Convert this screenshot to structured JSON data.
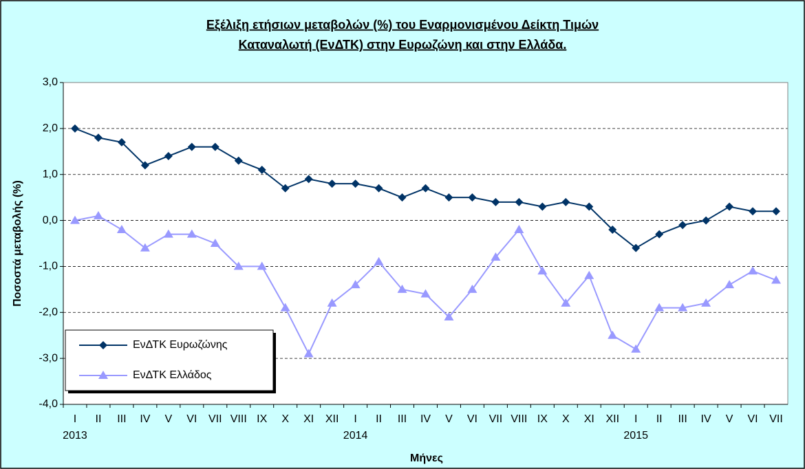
{
  "chart_data": {
    "type": "line",
    "title": [
      "Εξέλιξη ετήσιων μεταβολών (%) του Εναρμονισμένου Δείκτη Τιμών",
      "Καταναλωτή (ΕνΔΤΚ) στην Ευρωζώνη  και στην Ελλάδα."
    ],
    "x_label": "Μήνες",
    "y_label": "Ποσοστά μεταβολής (%)",
    "categories": [
      [
        "I",
        "2013"
      ],
      [
        "II",
        null
      ],
      [
        "III",
        null
      ],
      [
        "IV",
        null
      ],
      [
        "V",
        null
      ],
      [
        "VI",
        null
      ],
      [
        "VII",
        null
      ],
      [
        "VIII",
        null
      ],
      [
        "IX",
        null
      ],
      [
        "X",
        null
      ],
      [
        "XI",
        null
      ],
      [
        "XII",
        null
      ],
      [
        "I",
        "2014"
      ],
      [
        "II",
        null
      ],
      [
        "III",
        null
      ],
      [
        "IV",
        null
      ],
      [
        "V",
        null
      ],
      [
        "VI",
        null
      ],
      [
        "VII",
        null
      ],
      [
        "VIII",
        null
      ],
      [
        "IX",
        null
      ],
      [
        "X",
        null
      ],
      [
        "XI",
        null
      ],
      [
        "XII",
        null
      ],
      [
        "I",
        "2015"
      ],
      [
        "II",
        null
      ],
      [
        "III",
        null
      ],
      [
        "IV",
        null
      ],
      [
        "V",
        null
      ],
      [
        "VI",
        null
      ],
      [
        "VII",
        null
      ]
    ],
    "series": [
      {
        "name": "ΕνΔΤΚ Ευρωζώνης",
        "color": "#003366",
        "marker": "diamond",
        "values": [
          2.0,
          1.8,
          1.7,
          1.2,
          1.4,
          1.6,
          1.6,
          1.3,
          1.1,
          0.7,
          0.9,
          0.8,
          0.8,
          0.7,
          0.5,
          0.7,
          0.5,
          0.5,
          0.4,
          0.4,
          0.3,
          0.4,
          0.3,
          -0.2,
          -0.6,
          -0.3,
          -0.1,
          0.0,
          0.3,
          0.2,
          0.2
        ]
      },
      {
        "name": "ΕνΔΤΚ Ελλάδος",
        "color": "#9999ff",
        "marker": "triangle",
        "values": [
          0.0,
          0.1,
          -0.2,
          -0.6,
          -0.3,
          -0.3,
          -0.5,
          -1.0,
          -1.0,
          -1.9,
          -2.9,
          -1.8,
          -1.4,
          -0.9,
          -1.5,
          -1.6,
          -2.1,
          -1.5,
          -0.8,
          -0.2,
          -1.1,
          -1.8,
          -1.2,
          -2.5,
          -2.8,
          -1.9,
          -1.9,
          -1.8,
          -1.4,
          -1.1,
          -1.3
        ]
      }
    ],
    "ylim": [
      -4,
      3
    ],
    "yticks": [
      {
        "value": 3,
        "label": "3,0"
      },
      {
        "value": 2,
        "label": "2,0"
      },
      {
        "value": 1,
        "label": "1,0"
      },
      {
        "value": 0,
        "label": "0,0"
      },
      {
        "value": -1,
        "label": "-1,0"
      },
      {
        "value": -2,
        "label": "-2,0"
      },
      {
        "value": -3,
        "label": "-3,0"
      },
      {
        "value": -4,
        "label": "-4,0"
      }
    ],
    "grid": true,
    "legend_position": "lower left"
  }
}
